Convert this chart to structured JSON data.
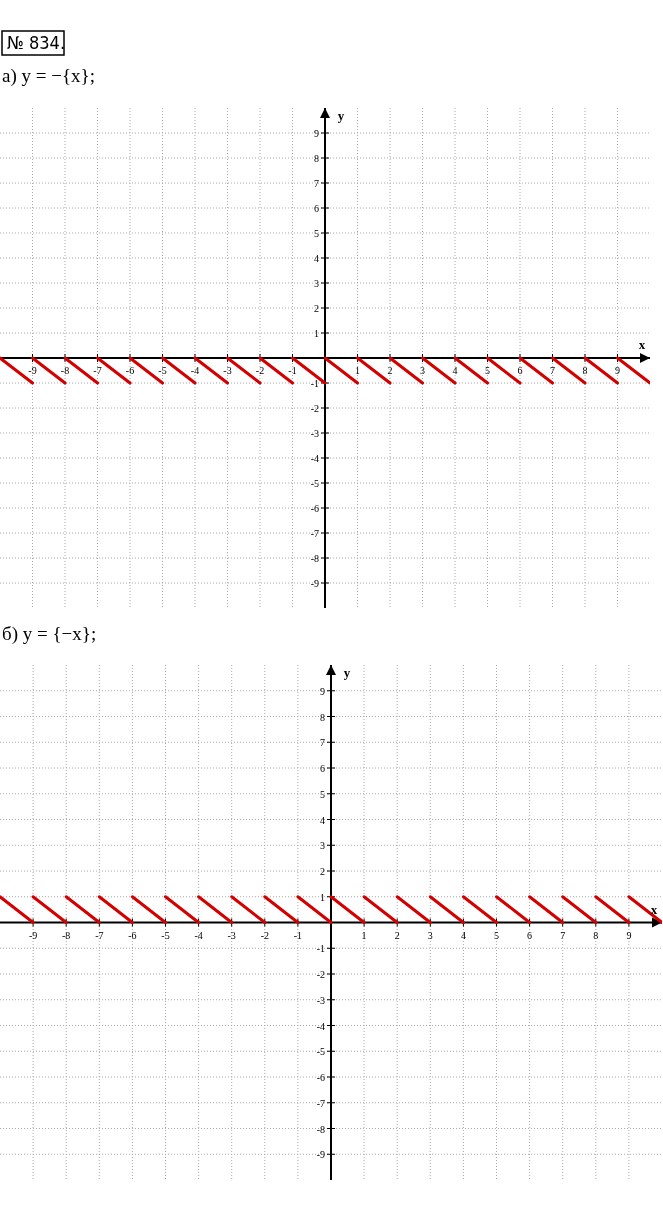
{
  "chart_data": [
    {
      "type": "line",
      "title": "а) y = −{x};",
      "annotations": [
        "№ 834."
      ],
      "xlabel": "x",
      "ylabel": "y",
      "xlim": [
        -10,
        10
      ],
      "ylim": [
        -10,
        10
      ],
      "xticks": [
        -9,
        -8,
        -7,
        -6,
        -5,
        -4,
        -3,
        -2,
        -1,
        1,
        2,
        3,
        4,
        5,
        6,
        7,
        8,
        9
      ],
      "yticks": [
        -9,
        -8,
        -7,
        -6,
        -5,
        -4,
        -3,
        -2,
        -1,
        1,
        2,
        3,
        4,
        5,
        6,
        7,
        8,
        9
      ],
      "grid": true,
      "series": [
        {
          "color": "#d40000",
          "x": [
            -10,
            -9,
            null,
            -9,
            -8,
            null,
            -8,
            -7,
            null,
            -7,
            -6,
            null,
            -6,
            -5,
            null,
            -5,
            -4,
            null,
            -4,
            -3,
            null,
            -3,
            -2,
            null,
            -2,
            -1,
            null,
            -1,
            0,
            null,
            0,
            1,
            null,
            1,
            2,
            null,
            2,
            3,
            null,
            3,
            4,
            null,
            4,
            5,
            null,
            5,
            6,
            null,
            6,
            7,
            null,
            7,
            8,
            null,
            8,
            9,
            null,
            9,
            10
          ],
          "values": [
            0,
            -1,
            null,
            0,
            -1,
            null,
            0,
            -1,
            null,
            0,
            -1,
            null,
            0,
            -1,
            null,
            0,
            -1,
            null,
            0,
            -1,
            null,
            0,
            -1,
            null,
            0,
            -1,
            null,
            0,
            -1,
            null,
            0,
            -1,
            null,
            0,
            -1,
            null,
            0,
            -1,
            null,
            0,
            -1,
            null,
            0,
            -1,
            null,
            0,
            -1,
            null,
            0,
            -1,
            null,
            0,
            -1,
            null,
            0,
            -1,
            null,
            0,
            -1
          ]
        }
      ]
    },
    {
      "type": "line",
      "title": "б) y = {−x};",
      "xlabel": "x",
      "ylabel": "y",
      "xlim": [
        -10,
        10
      ],
      "ylim": [
        -10,
        10
      ],
      "xticks": [
        -9,
        -8,
        -7,
        -6,
        -5,
        -4,
        -3,
        -2,
        -1,
        1,
        2,
        3,
        4,
        5,
        6,
        7,
        8,
        9
      ],
      "yticks": [
        -9,
        -8,
        -7,
        -6,
        -5,
        -4,
        -3,
        -2,
        -1,
        1,
        2,
        3,
        4,
        5,
        6,
        7,
        8,
        9
      ],
      "grid": true,
      "series": [
        {
          "color": "#d40000",
          "x": [
            -10,
            -9,
            null,
            -9,
            -8,
            null,
            -8,
            -7,
            null,
            -7,
            -6,
            null,
            -6,
            -5,
            null,
            -5,
            -4,
            null,
            -4,
            -3,
            null,
            -3,
            -2,
            null,
            -2,
            -1,
            null,
            -1,
            0,
            null,
            0,
            1,
            null,
            1,
            2,
            null,
            2,
            3,
            null,
            3,
            4,
            null,
            4,
            5,
            null,
            5,
            6,
            null,
            6,
            7,
            null,
            7,
            8,
            null,
            8,
            9,
            null,
            9,
            10
          ],
          "values": [
            1,
            0,
            null,
            1,
            0,
            null,
            1,
            0,
            null,
            1,
            0,
            null,
            1,
            0,
            null,
            1,
            0,
            null,
            1,
            0,
            null,
            1,
            0,
            null,
            1,
            0,
            null,
            1,
            0,
            null,
            1,
            0,
            null,
            1,
            0,
            null,
            1,
            0,
            null,
            1,
            0,
            null,
            1,
            0,
            null,
            1,
            0,
            null,
            1,
            0,
            null,
            1,
            0,
            null,
            1,
            0,
            null,
            1,
            0
          ]
        }
      ]
    }
  ]
}
